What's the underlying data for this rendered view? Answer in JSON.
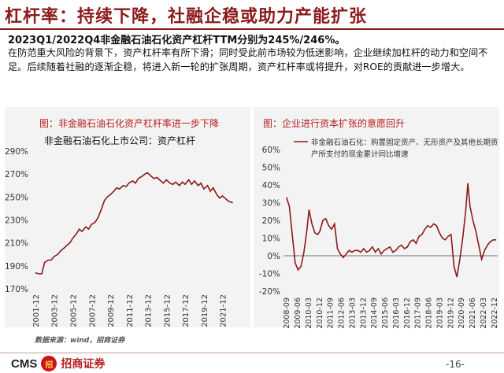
{
  "header": {
    "title": "杠杆率：持续下降，社融企稳或助力产能扩张",
    "headline": "2023Q1/2022Q4非金融石油石化资产杠杆TTM分别为245%/246%。",
    "paragraph": "在防范重大风险的背景下，资产杠杆率有所下滑；同时受此前市场较为低迷影响，企业继续加杠杆的动力和空间不足。后续随着社融的逐渐企稳，将进入新一轮的扩张周期，资产杠杆率或将提升，对ROE的贡献进一步增大。"
  },
  "footer": {
    "source": "数据来源：wind，招商证券",
    "logo_cms": "CMS",
    "logo_mark": "招",
    "logo_cn": "招商证券",
    "page_number": "-16-"
  },
  "chart_data": [
    {
      "type": "line",
      "title": "图：非金融石油石化资产杠杆率进一步下降",
      "subtitle": "非金融石油石化上市公司：资产杠杆",
      "x_ticks": [
        "2001-12",
        "2003-12",
        "2005-12",
        "2007-12",
        "2009-12",
        "2011-12",
        "2013-12",
        "2015-12",
        "2017-12",
        "2019-12",
        "2021-12"
      ],
      "y_ticks": [
        "170%",
        "190%",
        "210%",
        "230%",
        "250%",
        "270%",
        "290%"
      ],
      "ylim": [
        170,
        290
      ],
      "series": [
        {
          "color": "#8b1a1a",
          "points": [
            [
              2001.9,
              184
            ],
            [
              2002.3,
              183
            ],
            [
              2002.6,
              183
            ],
            [
              2002.9,
              193
            ],
            [
              2003.3,
              195
            ],
            [
              2003.6,
              195
            ],
            [
              2003.9,
              198
            ],
            [
              2004.3,
              200
            ],
            [
              2004.6,
              203
            ],
            [
              2004.9,
              205
            ],
            [
              2005.3,
              208
            ],
            [
              2005.6,
              210
            ],
            [
              2005.9,
              214
            ],
            [
              2006.3,
              218
            ],
            [
              2006.6,
              222
            ],
            [
              2006.9,
              220
            ],
            [
              2007.3,
              224
            ],
            [
              2007.6,
              222
            ],
            [
              2007.9,
              226
            ],
            [
              2008.3,
              228
            ],
            [
              2008.6,
              232
            ],
            [
              2008.9,
              238
            ],
            [
              2009.3,
              247
            ],
            [
              2009.6,
              250
            ],
            [
              2009.9,
              252
            ],
            [
              2010.3,
              255
            ],
            [
              2010.6,
              258
            ],
            [
              2010.9,
              257
            ],
            [
              2011.3,
              260
            ],
            [
              2011.6,
              259
            ],
            [
              2011.9,
              262
            ],
            [
              2012.3,
              264
            ],
            [
              2012.6,
              262
            ],
            [
              2012.9,
              266
            ],
            [
              2013.3,
              268
            ],
            [
              2013.6,
              270
            ],
            [
              2013.9,
              271
            ],
            [
              2014.3,
              268
            ],
            [
              2014.6,
              266
            ],
            [
              2014.9,
              267
            ],
            [
              2015.3,
              264
            ],
            [
              2015.6,
              262
            ],
            [
              2015.9,
              265
            ],
            [
              2016.3,
              262
            ],
            [
              2016.6,
              261
            ],
            [
              2016.9,
              263
            ],
            [
              2017.3,
              260
            ],
            [
              2017.6,
              263
            ],
            [
              2017.9,
              261
            ],
            [
              2018.3,
              265
            ],
            [
              2018.6,
              261
            ],
            [
              2018.9,
              264
            ],
            [
              2019.3,
              260
            ],
            [
              2019.6,
              262
            ],
            [
              2019.9,
              257
            ],
            [
              2020.3,
              260
            ],
            [
              2020.6,
              255
            ],
            [
              2020.9,
              258
            ],
            [
              2021.3,
              252
            ],
            [
              2021.6,
              249
            ],
            [
              2021.9,
              251
            ],
            [
              2022.3,
              248
            ],
            [
              2022.6,
              246
            ],
            [
              2023.0,
              245
            ]
          ]
        }
      ]
    },
    {
      "type": "line",
      "title": "图：企业进行资本扩张的意愿回升",
      "legend": "非金融石油石化：购置固定资产、无形资产及其他长期资产所支付的现金累计同比增速",
      "x_ticks": [
        "2008-09",
        "2009-06",
        "2010-03",
        "2010-12",
        "2011-09",
        "2012-06",
        "2013-03",
        "2013-12",
        "2014-09",
        "2015-06",
        "2016-03",
        "2016-12",
        "2017-09",
        "2018-06",
        "2019-03",
        "2019-12",
        "2020-09",
        "2021-06",
        "2022-03",
        "2022-12"
      ],
      "y_ticks": [
        "-20%",
        "-10%",
        "0%",
        "10%",
        "20%",
        "30%",
        "40%",
        "50%",
        "60%"
      ],
      "ylim": [
        -20,
        60
      ],
      "series": [
        {
          "name": "非金融石油石化：购置固定资产、无形资产及其他长期资产所支付的现金累计同比增速",
          "color": "#8b1a1a",
          "points": [
            [
              2008.7,
              33
            ],
            [
              2008.9,
              28
            ],
            [
              2009.1,
              12
            ],
            [
              2009.3,
              -4
            ],
            [
              2009.5,
              -8
            ],
            [
              2009.7,
              -6
            ],
            [
              2009.9,
              2
            ],
            [
              2010.1,
              14
            ],
            [
              2010.25,
              26
            ],
            [
              2010.45,
              18
            ],
            [
              2010.65,
              13
            ],
            [
              2010.85,
              12
            ],
            [
              2011.0,
              14
            ],
            [
              2011.2,
              20
            ],
            [
              2011.4,
              21
            ],
            [
              2011.6,
              17
            ],
            [
              2011.8,
              15
            ],
            [
              2012.0,
              18
            ],
            [
              2012.2,
              4
            ],
            [
              2012.4,
              1
            ],
            [
              2012.6,
              -1
            ],
            [
              2012.8,
              1
            ],
            [
              2013.0,
              3
            ],
            [
              2013.2,
              2
            ],
            [
              2013.4,
              3
            ],
            [
              2013.6,
              3
            ],
            [
              2013.8,
              2
            ],
            [
              2014.0,
              4
            ],
            [
              2014.2,
              2
            ],
            [
              2014.4,
              3
            ],
            [
              2014.6,
              5
            ],
            [
              2014.8,
              2
            ],
            [
              2015.0,
              4
            ],
            [
              2015.2,
              1
            ],
            [
              2015.4,
              3
            ],
            [
              2015.6,
              4
            ],
            [
              2015.8,
              5
            ],
            [
              2016.0,
              2
            ],
            [
              2016.2,
              3
            ],
            [
              2016.4,
              5
            ],
            [
              2016.6,
              6
            ],
            [
              2016.8,
              4
            ],
            [
              2017.0,
              5
            ],
            [
              2017.2,
              8
            ],
            [
              2017.4,
              9
            ],
            [
              2017.6,
              7
            ],
            [
              2017.8,
              11
            ],
            [
              2018.0,
              12
            ],
            [
              2018.2,
              15
            ],
            [
              2018.4,
              17
            ],
            [
              2018.6,
              16
            ],
            [
              2018.8,
              18
            ],
            [
              2019.0,
              17
            ],
            [
              2019.2,
              13
            ],
            [
              2019.4,
              10
            ],
            [
              2019.6,
              9
            ],
            [
              2019.8,
              11
            ],
            [
              2020.0,
              12
            ],
            [
              2020.2,
              -6
            ],
            [
              2020.4,
              -12
            ],
            [
              2020.6,
              -2
            ],
            [
              2020.8,
              10
            ],
            [
              2021.0,
              25
            ],
            [
              2021.15,
              41
            ],
            [
              2021.3,
              28
            ],
            [
              2021.5,
              20
            ],
            [
              2021.7,
              14
            ],
            [
              2021.9,
              6
            ],
            [
              2022.1,
              -2
            ],
            [
              2022.3,
              3
            ],
            [
              2022.5,
              6
            ],
            [
              2022.7,
              8
            ],
            [
              2022.9,
              9
            ],
            [
              2023.1,
              9
            ]
          ]
        }
      ]
    }
  ]
}
